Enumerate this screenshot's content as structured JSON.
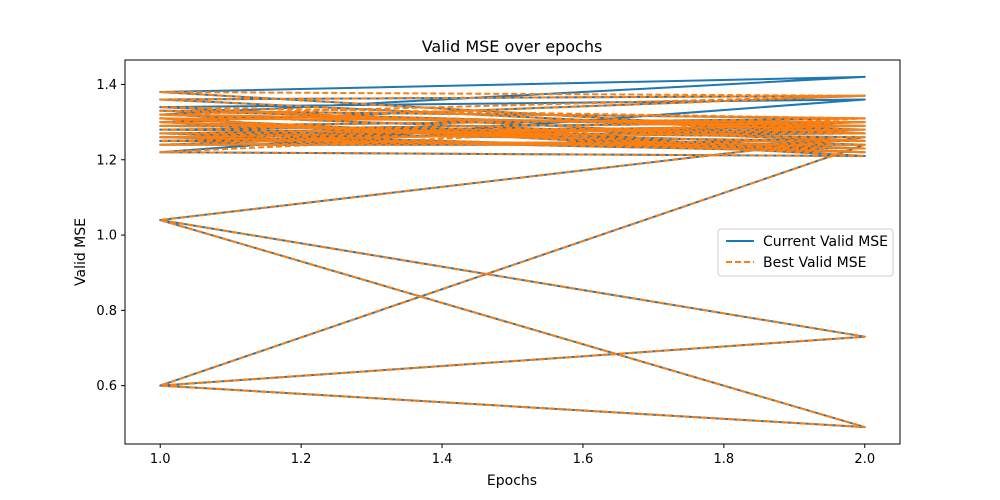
{
  "chart_data": {
    "type": "line",
    "title": "Valid MSE over epochs",
    "xlabel": "Epochs",
    "ylabel": "Valid MSE",
    "xlim": [
      0.95,
      2.05
    ],
    "ylim": [
      0.445,
      1.465
    ],
    "xticks": [
      1.0,
      1.2,
      1.4,
      1.6,
      1.8,
      2.0
    ],
    "yticks": [
      0.6,
      0.8,
      1.0,
      1.2,
      1.4
    ],
    "xtick_labels": [
      "1.0",
      "1.2",
      "1.4",
      "1.6",
      "1.8",
      "2.0"
    ],
    "ytick_labels": [
      "0.6",
      "0.8",
      "1.0",
      "1.2",
      "1.4"
    ],
    "grid": false,
    "legend_position": "center-right",
    "colors": {
      "current": "#1f77b4",
      "best": "#ff7f0e"
    },
    "series": [
      {
        "name": "Current Valid MSE",
        "style": "solid",
        "x": [
          1,
          2,
          1,
          2,
          1,
          2,
          1,
          2,
          1,
          2,
          1,
          2,
          1,
          2,
          1,
          2,
          1,
          2,
          1,
          2,
          1,
          2,
          1,
          2,
          1,
          2,
          1,
          2,
          1,
          2,
          1,
          2,
          1,
          2,
          1,
          2,
          1,
          2,
          1,
          2,
          1,
          2,
          1,
          2,
          1,
          2,
          1,
          2,
          1,
          2
        ],
        "values": [
          1.24,
          1.24,
          1.3,
          1.22,
          1.26,
          1.27,
          1.38,
          1.42,
          1.32,
          1.29,
          1.27,
          1.25,
          1.34,
          1.36,
          1.22,
          1.21,
          1.31,
          1.3,
          1.28,
          1.26,
          1.04,
          0.73,
          0.6,
          0.49,
          1.04,
          0.49,
          0.6,
          0.73,
          0.6,
          1.24,
          1.25,
          1.28,
          1.33,
          1.31,
          1.29,
          1.27,
          1.36,
          1.37,
          1.3,
          1.23,
          1.26,
          1.29,
          1.32,
          1.25,
          1.24,
          1.3,
          1.31,
          1.22,
          1.27,
          1.28
        ]
      },
      {
        "name": "Best Valid MSE",
        "style": "dashed",
        "x": [
          1,
          2,
          1,
          2,
          1,
          2,
          1,
          2,
          1,
          2,
          1,
          2,
          1,
          2,
          1,
          2,
          1,
          2,
          1,
          2,
          1,
          2,
          1,
          2,
          1,
          2,
          1,
          2,
          1,
          2,
          1,
          2,
          1,
          2,
          1,
          2,
          1,
          2,
          1,
          2,
          1,
          2,
          1,
          2,
          1,
          2,
          1,
          2,
          1,
          2
        ],
        "values": [
          1.24,
          1.24,
          1.3,
          1.22,
          1.26,
          1.27,
          1.38,
          1.37,
          1.32,
          1.29,
          1.27,
          1.25,
          1.34,
          1.31,
          1.22,
          1.21,
          1.31,
          1.3,
          1.28,
          1.26,
          1.04,
          0.73,
          0.6,
          0.49,
          1.04,
          0.49,
          0.6,
          0.73,
          0.6,
          1.24,
          1.25,
          1.28,
          1.33,
          1.31,
          1.29,
          1.27,
          1.36,
          1.37,
          1.3,
          1.23,
          1.26,
          1.29,
          1.32,
          1.25,
          1.24,
          1.3,
          1.31,
          1.22,
          1.27,
          1.28
        ]
      }
    ]
  }
}
